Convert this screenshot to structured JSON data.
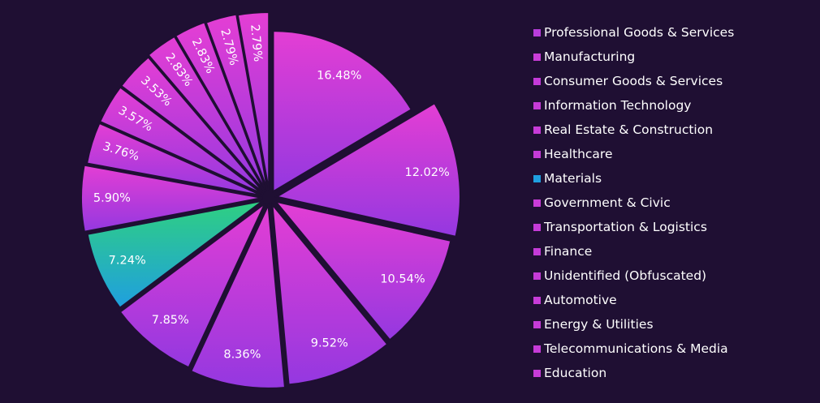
{
  "chart_data": {
    "type": "pie",
    "legend_position": "right",
    "slices": [
      {
        "name": "Professional Goods & Services",
        "value": 16.48,
        "label": "16.48%",
        "color": "#b93ddc"
      },
      {
        "name": "Manufacturing",
        "value": 12.02,
        "label": "12.02%",
        "color": "#c93dd8"
      },
      {
        "name": "Consumer Goods & Services",
        "value": 10.54,
        "label": "10.54%",
        "color": "#c43ad9"
      },
      {
        "name": "Information Technology",
        "value": 9.52,
        "label": "9.52%",
        "color": "#c63bd8"
      },
      {
        "name": "Real Estate & Construction",
        "value": 8.36,
        "label": "8.36%",
        "color": "#c73bd8"
      },
      {
        "name": "Healthcare",
        "value": 7.85,
        "label": "7.85%",
        "color": "#c53bd8"
      },
      {
        "name": "Materials",
        "value": 7.24,
        "label": "7.24%",
        "color": "#1f9fe0"
      },
      {
        "name": "Government & Civic",
        "value": 5.9,
        "label": "5.90%",
        "color": "#c93cd8"
      },
      {
        "name": "Transportation & Logistics",
        "value": 3.76,
        "label": "3.76%",
        "color": "#c53bd8"
      },
      {
        "name": "Finance",
        "value": 3.57,
        "label": "3.57%",
        "color": "#c43bd8"
      },
      {
        "name": "Unidentified (Obfuscated)",
        "value": 3.53,
        "label": "3.53%",
        "color": "#c53bd8"
      },
      {
        "name": "Automotive",
        "value": 2.83,
        "label": "2.83%",
        "color": "#c73cd8"
      },
      {
        "name": "Energy & Utilities",
        "value": 2.83,
        "label": "2.83%",
        "color": "#c53bd8"
      },
      {
        "name": "Telecommunications & Media",
        "value": 2.79,
        "label": "2.79%",
        "color": "#c63bd8"
      },
      {
        "name": "Education",
        "value": 2.79,
        "label": "2.79%",
        "color": "#c73cd8"
      }
    ]
  }
}
